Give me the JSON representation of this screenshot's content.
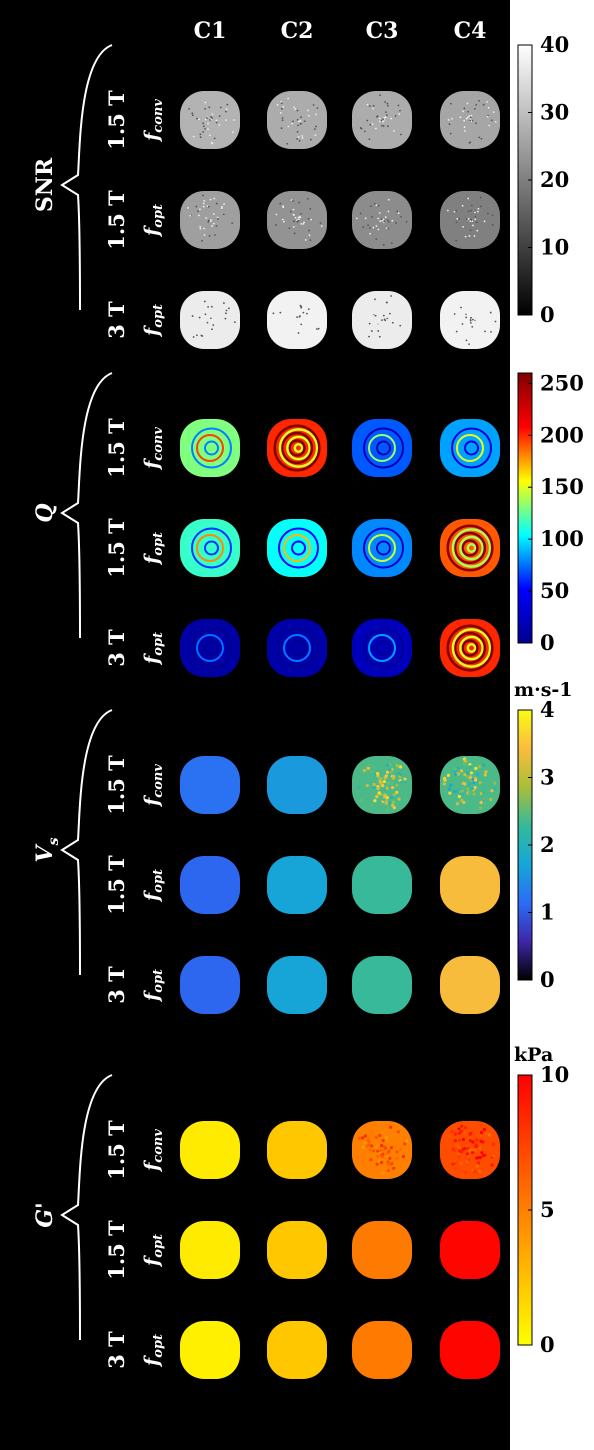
{
  "columns": [
    "C1",
    "C2",
    "C3",
    "C4"
  ],
  "rows": [
    {
      "field": "1.5 T",
      "freq": "f",
      "freq_sub": "conv"
    },
    {
      "field": "1.5 T",
      "freq": "f",
      "freq_sub": "opt"
    },
    {
      "field": "3 T",
      "freq": "f",
      "freq_sub": "opt"
    }
  ],
  "panels": [
    {
      "name": "snr",
      "label": "SNR",
      "unit": "",
      "colormap": "gray",
      "colors": [
        "#000000",
        "#ffffff"
      ],
      "range": [
        0,
        40
      ],
      "ticks": [
        0,
        10,
        20,
        30,
        40
      ],
      "tick_labels": [
        "0",
        "10",
        "20",
        "30",
        "40"
      ],
      "values": [
        [
          28,
          27,
          27,
          26
        ],
        [
          25,
          23,
          22,
          20
        ],
        [
          37,
          38,
          37,
          38
        ]
      ],
      "pattern": "speckle"
    },
    {
      "name": "q",
      "label": "Q",
      "unit": "",
      "colormap": "jet",
      "colors": [
        "#00008f",
        "#0000ff",
        "#00ffff",
        "#ffff00",
        "#ff0000",
        "#800000"
      ],
      "range": [
        0,
        260
      ],
      "ticks": [
        0,
        50,
        100,
        150,
        200,
        250
      ],
      "tick_labels": [
        "0",
        "50",
        "100",
        "150",
        "200",
        "250"
      ],
      "values": [
        [
          130,
          200,
          70,
          85
        ],
        [
          115,
          105,
          80,
          190
        ],
        [
          10,
          12,
          20,
          200
        ]
      ],
      "pattern": "rings"
    },
    {
      "name": "vs",
      "label": "V",
      "label_sub": "s",
      "unit": "m·s-1",
      "colormap": "parula",
      "colors": [
        "#000000",
        "#3e26a8",
        "#2c6cf5",
        "#16a6d6",
        "#35b99b",
        "#a7bf3a",
        "#fbbc3c",
        "#f9fb15"
      ],
      "range": [
        0,
        4
      ],
      "ticks": [
        0,
        1,
        2,
        3,
        4
      ],
      "tick_labels": [
        "0",
        "1",
        "2",
        "3",
        "4"
      ],
      "values": [
        [
          1.2,
          1.6,
          2.4,
          2.4
        ],
        [
          1.1,
          1.7,
          2.3,
          3.4
        ],
        [
          1.1,
          1.7,
          2.3,
          3.4
        ]
      ],
      "pattern": "flat"
    },
    {
      "name": "g",
      "label": "G'",
      "unit": "kPa",
      "colormap": "autumn",
      "colors": [
        "#ffff00",
        "#ff0000"
      ],
      "range": [
        0,
        10
      ],
      "ticks": [
        0,
        5,
        10
      ],
      "tick_labels": [
        "0",
        "5",
        "10"
      ],
      "values": [
        [
          0.8,
          2.2,
          5.0,
          7.0
        ],
        [
          0.8,
          2.2,
          5.2,
          9.8
        ],
        [
          0.6,
          2.2,
          5.2,
          9.8
        ]
      ],
      "pattern": "flat"
    }
  ]
}
